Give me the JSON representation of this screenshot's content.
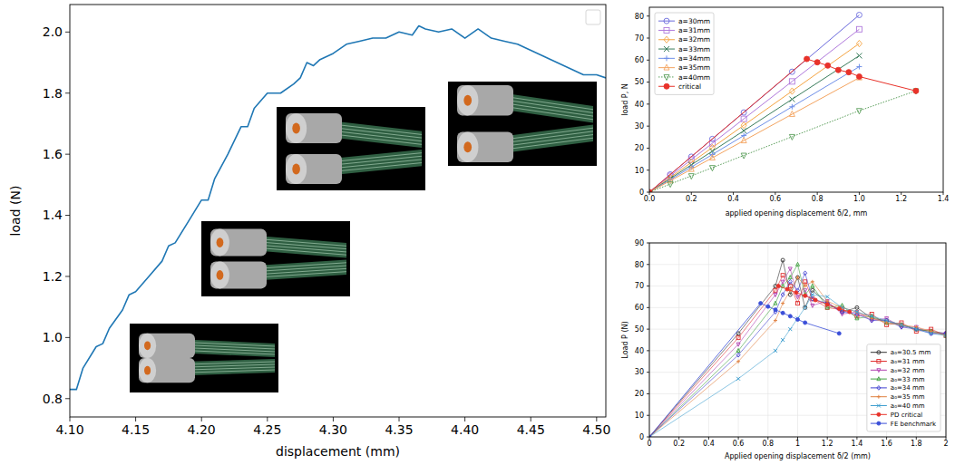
{
  "chart_data": [
    {
      "type": "line",
      "xlabel": "displacement (mm)",
      "ylabel": "load (N)",
      "xlim": [
        4.1,
        4.507
      ],
      "ylim": [
        0.74,
        2.09
      ],
      "xticks": [
        {
          "value": 4.1,
          "label": "4.10"
        },
        {
          "value": 4.15,
          "label": "4.15"
        },
        {
          "value": 4.2,
          "label": "4.20"
        },
        {
          "value": 4.25,
          "label": "4.25"
        },
        {
          "value": 4.3,
          "label": "4.30"
        },
        {
          "value": 4.35,
          "label": "4.35"
        },
        {
          "value": 4.4,
          "label": "4.40"
        },
        {
          "value": 4.45,
          "label": "4.45"
        },
        {
          "value": 4.5,
          "label": "4.50"
        }
      ],
      "yticks": [
        0.8,
        {
          "value": 1.0,
          "label": "1.0"
        },
        1.2,
        1.4,
        1.6,
        1.8,
        {
          "value": 2.0,
          "label": "2.0"
        }
      ],
      "grid": false,
      "legend": "upper right",
      "series": [
        {
          "color": "#1f77b4",
          "line_style": "solid",
          "x": [
            4.1,
            4.105,
            4.11,
            4.12,
            4.125,
            4.13,
            4.14,
            4.145,
            4.15,
            4.16,
            4.17,
            4.175,
            4.18,
            4.19,
            4.2,
            4.205,
            4.21,
            4.22,
            4.23,
            4.235,
            4.24,
            4.25,
            4.26,
            4.27,
            4.275,
            4.28,
            4.285,
            4.29,
            4.3,
            4.31,
            4.32,
            4.33,
            4.34,
            4.35,
            4.36,
            4.365,
            4.37,
            4.38,
            4.39,
            4.4,
            4.41,
            4.42,
            4.43,
            4.44,
            4.45,
            4.46,
            4.47,
            4.48,
            4.49,
            4.5,
            4.507
          ],
          "values": [
            0.83,
            0.83,
            0.9,
            0.97,
            0.98,
            1.03,
            1.09,
            1.14,
            1.15,
            1.2,
            1.25,
            1.3,
            1.31,
            1.38,
            1.45,
            1.45,
            1.52,
            1.6,
            1.69,
            1.69,
            1.75,
            1.8,
            1.8,
            1.83,
            1.85,
            1.9,
            1.89,
            1.91,
            1.93,
            1.96,
            1.97,
            1.98,
            1.98,
            2.0,
            1.99,
            2.02,
            2.01,
            2.0,
            2.01,
            1.98,
            2.01,
            1.98,
            1.97,
            1.96,
            1.94,
            1.92,
            1.9,
            1.88,
            1.86,
            1.86,
            1.85
          ]
        }
      ]
    },
    {
      "type": "line",
      "xlabel": "applied opening displacement δ/2, mm",
      "ylabel": "load P, N",
      "xlim": [
        0,
        1.4
      ],
      "ylim": [
        0,
        84
      ],
      "xticks": [
        {
          "value": 0,
          "label": "0.0"
        },
        0.2,
        0.4,
        0.6,
        0.8,
        {
          "value": 1,
          "label": "1.0"
        },
        1.2,
        1.4
      ],
      "yticks": [
        0,
        10,
        20,
        30,
        40,
        50,
        60,
        70,
        80
      ],
      "grid": false,
      "legend": "upper left",
      "series": [
        {
          "name": "a=30mm",
          "color": "#6a6adc",
          "marker": "circle",
          "line_style": "solid",
          "x": [
            0,
            0.1,
            0.2,
            0.3,
            0.45,
            0.68,
            1.0
          ],
          "values": [
            0,
            8.05,
            16.1,
            24.15,
            36.2,
            54.7,
            80.5
          ]
        },
        {
          "name": "a=31mm",
          "color": "#b07adc",
          "marker": "square",
          "line_style": "solid",
          "x": [
            0,
            0.1,
            0.2,
            0.3,
            0.45,
            0.68,
            1.0
          ],
          "values": [
            0,
            7.4,
            14.8,
            22.2,
            33.3,
            50.3,
            74
          ]
        },
        {
          "name": "a=32mm",
          "color": "#f5a442",
          "marker": "diamond",
          "line_style": "solid",
          "x": [
            0,
            0.1,
            0.2,
            0.3,
            0.45,
            0.68,
            1.0
          ],
          "values": [
            0,
            6.75,
            13.5,
            20.25,
            30.4,
            45.9,
            67.5
          ]
        },
        {
          "name": "a=33mm",
          "color": "#3a7d5c",
          "marker": "x",
          "line_style": "solid",
          "x": [
            0,
            0.1,
            0.2,
            0.3,
            0.45,
            0.68,
            1.0
          ],
          "values": [
            0,
            6.2,
            12.4,
            18.6,
            27.9,
            42.2,
            62
          ]
        },
        {
          "name": "a=34mm",
          "color": "#6f8fe8",
          "marker": "plus",
          "line_style": "solid",
          "x": [
            0,
            0.1,
            0.2,
            0.3,
            0.45,
            0.68,
            1.0
          ],
          "values": [
            0,
            5.7,
            11.4,
            17.1,
            25.7,
            38.8,
            57
          ]
        },
        {
          "name": "a=35mm",
          "color": "#f4a460",
          "marker": "triangle_up",
          "line_style": "solid",
          "x": [
            0,
            0.1,
            0.2,
            0.3,
            0.45,
            0.68,
            1.0
          ],
          "values": [
            0,
            5.2,
            10.4,
            15.6,
            23.4,
            35.4,
            52
          ]
        },
        {
          "name": "a=40mm",
          "color": "#5a9e5a",
          "marker": "triangle_down",
          "line_style": "dotted",
          "x": [
            0,
            0.1,
            0.2,
            0.3,
            0.45,
            0.68,
            1.0,
            1.27
          ],
          "values": [
            0,
            3.7,
            7.4,
            11.1,
            16.7,
            25.2,
            37,
            46
          ]
        },
        {
          "name": "critical",
          "color": "#e8322a",
          "marker": "filled_circle",
          "line_style": "solid",
          "x": [
            0,
            0.75,
            0.8,
            0.85,
            0.9,
            0.95,
            1.0,
            1.27
          ],
          "values": [
            0,
            60.5,
            59,
            57.5,
            55.5,
            54.5,
            52.5,
            46
          ]
        }
      ]
    },
    {
      "type": "line",
      "xlabel": "Applied opening displacement δ/2 (mm)",
      "ylabel": "Load P (N)",
      "xlim": [
        0,
        2
      ],
      "ylim": [
        0,
        90
      ],
      "xticks": [
        0,
        0.2,
        0.4,
        0.6,
        0.8,
        1,
        1.2,
        1.4,
        1.6,
        1.8,
        2
      ],
      "yticks": [
        0,
        10,
        20,
        30,
        40,
        50,
        60,
        70,
        80,
        90
      ],
      "grid": true,
      "legend": "lower right",
      "series": [
        {
          "name": "a₀=30.5 mm",
          "color": "#333333",
          "marker": "circle",
          "line_style": "solid",
          "x": [
            0,
            0.6,
            0.85,
            0.9,
            0.95,
            1.0,
            1.05,
            1.1,
            1.2,
            1.3,
            1.4,
            1.5,
            1.6,
            1.7,
            1.8,
            1.9,
            2.0
          ],
          "values": [
            0,
            48,
            70,
            82,
            66,
            74,
            60,
            68,
            62,
            58,
            60,
            55,
            54,
            52,
            50,
            49,
            48
          ]
        },
        {
          "name": "a₀=31 mm",
          "color": "#e03030",
          "marker": "square",
          "line_style": "solid",
          "x": [
            0,
            0.6,
            0.85,
            0.9,
            0.95,
            1.0,
            1.05,
            1.1,
            1.2,
            1.3,
            1.4,
            1.5,
            1.6,
            1.7,
            1.8,
            1.9,
            2.0
          ],
          "values": [
            0,
            46,
            68,
            75,
            70,
            62,
            72,
            64,
            60,
            59,
            56,
            57,
            52,
            53,
            49,
            50,
            47
          ]
        },
        {
          "name": "a₀=32 mm",
          "color": "#b040b0",
          "marker": "triangle_down",
          "line_style": "solid",
          "x": [
            0,
            0.6,
            0.85,
            0.9,
            0.95,
            1.0,
            1.05,
            1.1,
            1.2,
            1.3,
            1.4,
            1.5,
            1.6,
            1.7,
            1.8,
            1.9,
            2.0
          ],
          "values": [
            0,
            43,
            66,
            72,
            78,
            65,
            68,
            61,
            63,
            57,
            58,
            54,
            55,
            51,
            51,
            48,
            48
          ]
        },
        {
          "name": "a₀=33 mm",
          "color": "#40a040",
          "marker": "triangle_up",
          "line_style": "solid",
          "x": [
            0,
            0.6,
            0.85,
            0.9,
            0.95,
            1.0,
            1.05,
            1.1,
            1.2,
            1.3,
            1.4,
            1.5,
            1.6,
            1.7,
            1.8,
            1.9,
            2.0
          ],
          "values": [
            0,
            40,
            62,
            70,
            74,
            80,
            66,
            70,
            60,
            61,
            55,
            56,
            53,
            52,
            50,
            49,
            47
          ]
        },
        {
          "name": "a₀=34 mm",
          "color": "#4040d0",
          "marker": "diamond",
          "line_style": "solid",
          "x": [
            0,
            0.6,
            0.85,
            0.9,
            0.95,
            1.0,
            1.05,
            1.1,
            1.2,
            1.3,
            1.4,
            1.5,
            1.6,
            1.7,
            1.8,
            1.9,
            2.0
          ],
          "values": [
            0,
            38,
            58,
            66,
            72,
            68,
            76,
            64,
            62,
            58,
            57,
            54,
            54,
            51,
            50,
            48,
            48
          ]
        },
        {
          "name": "a₀=35 mm",
          "color": "#e08040",
          "marker": "plus",
          "line_style": "solid",
          "x": [
            0,
            0.6,
            0.85,
            0.9,
            0.95,
            1.0,
            1.05,
            1.1,
            1.2,
            1.3,
            1.4,
            1.5,
            1.6,
            1.7,
            1.8,
            1.9,
            2.0
          ],
          "values": [
            0,
            35,
            54,
            62,
            68,
            74,
            70,
            72,
            63,
            60,
            58,
            55,
            53,
            52,
            51,
            49,
            47
          ]
        },
        {
          "name": "a₀=40 mm",
          "color": "#40a0d0",
          "marker": "x",
          "line_style": "solid",
          "x": [
            0,
            0.6,
            0.85,
            0.9,
            0.95,
            1.0,
            1.05,
            1.1,
            1.2,
            1.3,
            1.4,
            1.5,
            1.6,
            1.7,
            1.8,
            1.9,
            2.0
          ],
          "values": [
            0,
            27,
            40,
            45,
            50,
            55,
            60,
            66,
            65,
            60,
            58,
            56,
            54,
            52,
            50,
            48,
            47
          ]
        },
        {
          "name": "PD critical",
          "color": "#e8322a",
          "marker": "filled_circle",
          "line_style": "solid",
          "x": [
            0.87,
            0.93,
            0.99,
            1.05,
            1.12,
            1.2,
            1.28,
            1.35
          ],
          "values": [
            70,
            68.5,
            67,
            65.5,
            63.5,
            61.5,
            59.5,
            58
          ]
        },
        {
          "name": "FE benchmark",
          "color": "#3b4fd8",
          "marker": "filled_circle",
          "line_style": "solid",
          "x": [
            0,
            0.75,
            0.8,
            0.85,
            0.9,
            0.95,
            1.0,
            1.05,
            1.28
          ],
          "values": [
            0,
            62,
            60.5,
            59,
            57.5,
            56,
            54.5,
            53,
            48
          ]
        }
      ]
    }
  ]
}
